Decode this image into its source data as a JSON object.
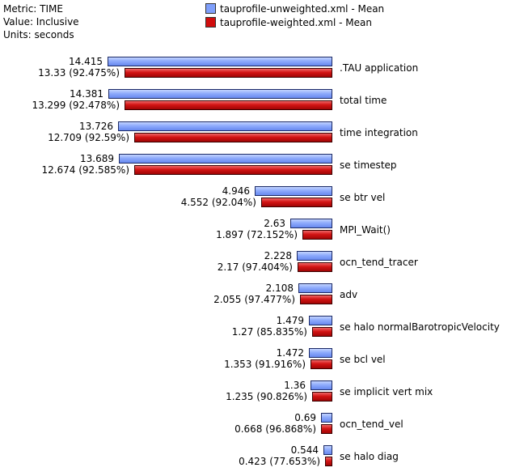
{
  "meta": {
    "metric": "Metric: TIME",
    "value": "Value: Inclusive",
    "units": "Units: seconds"
  },
  "legend": [
    {
      "label": "tauprofile-unweighted.xml - Mean",
      "color": "#7f9ffb"
    },
    {
      "label": "tauprofile-weighted.xml - Mean",
      "color": "#d10d0d"
    }
  ],
  "chart_data": {
    "type": "bar",
    "orientation": "horizontal",
    "categories": [
      ".TAU application",
      "total time",
      "time integration",
      "se timestep",
      "se btr vel",
      "MPI_Wait()",
      "ocn_tend_tracer",
      "adv",
      "se halo normalBarotropicVelocity",
      "se bcl vel",
      "se implicit vert mix",
      "ocn_tend_vel",
      "se halo diag"
    ],
    "series": [
      {
        "name": "tauprofile-unweighted.xml - Mean",
        "color": "#7f9ffb",
        "values": [
          14.415,
          14.381,
          13.726,
          13.689,
          4.946,
          2.63,
          2.228,
          2.108,
          1.479,
          1.472,
          1.36,
          0.69,
          0.544
        ],
        "labels": [
          "14.415",
          "14.381",
          "13.726",
          "13.689",
          "4.946",
          "2.63",
          "2.228",
          "2.108",
          "1.479",
          "1.472",
          "1.36",
          "0.69",
          "0.544"
        ]
      },
      {
        "name": "tauprofile-weighted.xml - Mean",
        "color": "#d10d0d",
        "values": [
          13.33,
          13.299,
          12.709,
          12.674,
          4.552,
          1.897,
          2.17,
          2.055,
          1.27,
          1.353,
          1.235,
          0.668,
          0.423
        ],
        "labels": [
          "13.33 (92.475%)",
          "13.299 (92.478%)",
          "12.709 (92.59%)",
          "12.674 (92.585%)",
          "4.552 (92.04%)",
          "1.897 (72.152%)",
          "2.17 (97.404%)",
          "2.055 (97.477%)",
          "1.27 (85.835%)",
          "1.353 (91.916%)",
          "1.235 (90.826%)",
          "0.668 (96.868%)",
          "0.423 (77.653%)"
        ]
      }
    ],
    "xlim": [
      0,
      14.415
    ],
    "bars_grow": "right-to-left",
    "legend_position": "top"
  }
}
